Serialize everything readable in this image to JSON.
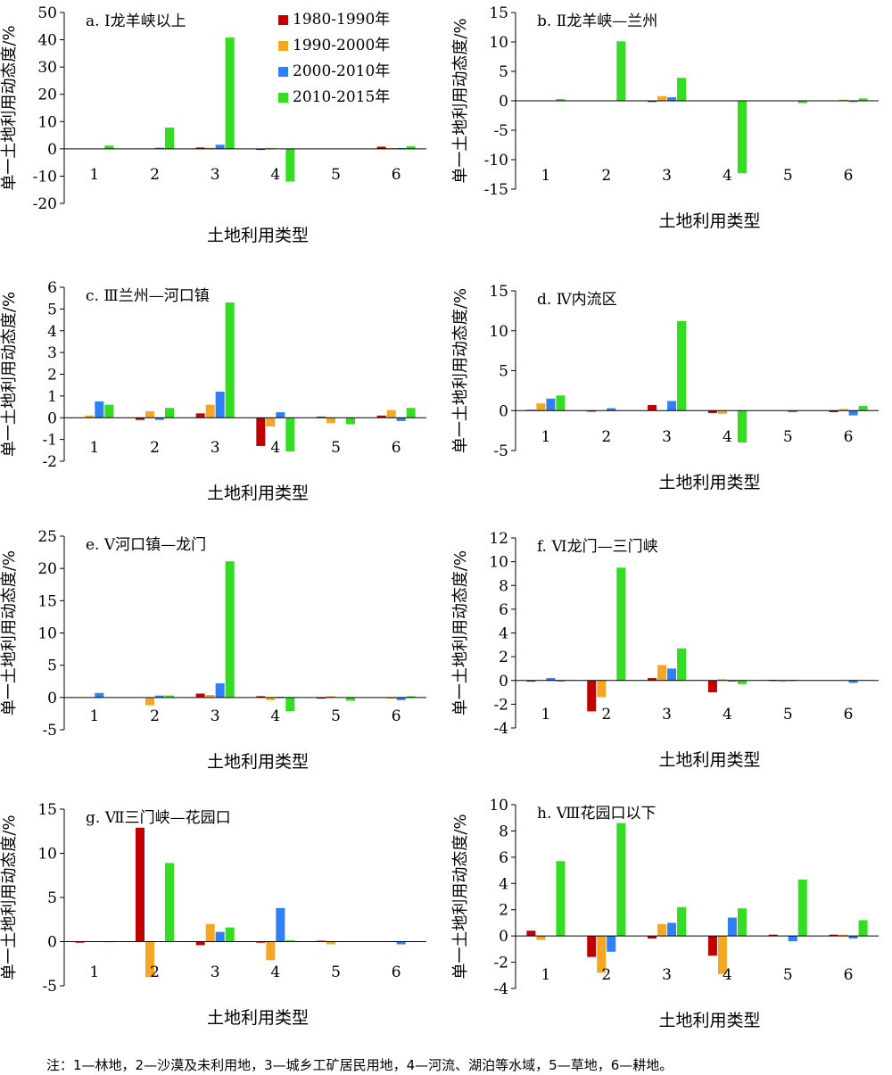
{
  "figure": {
    "note": "注：1—林地，2—沙漠及未利用地，3—城乡工矿居民用地，4—河流、湖泊等水域，5—草地，6—耕地。"
  },
  "colors": {
    "1980-1990年": "#c00000",
    "1990-2000年": "#f5a623",
    "2000-2010年": "#2f7ff5",
    "2010-2015年": "#33dd22"
  },
  "chart_data": [
    {
      "type": "bar",
      "title": "a. Ⅰ龙羊峡以上",
      "xlabel": "土地利用类型",
      "ylabel": "单一土地利用动态度/%",
      "categories": [
        "1",
        "2",
        "3",
        "4",
        "5",
        "6"
      ],
      "ylim": [
        -20,
        50
      ],
      "yticks": [
        -20,
        -10,
        0,
        10,
        20,
        30,
        40,
        50
      ],
      "legend": "top-center",
      "series": [
        {
          "name": "1980-1990年",
          "values": [
            0,
            0,
            0.5,
            -0.3,
            0,
            0.8
          ]
        },
        {
          "name": "1990-2000年",
          "values": [
            0,
            0,
            0.4,
            0.3,
            0,
            0.3
          ]
        },
        {
          "name": "2000-2010年",
          "values": [
            0,
            0.4,
            1.5,
            0,
            0,
            0.3
          ]
        },
        {
          "name": "2010-2015年",
          "values": [
            1.2,
            7.8,
            40.8,
            -12,
            0,
            1.0
          ]
        }
      ]
    },
    {
      "type": "bar",
      "title": "b. Ⅱ龙羊峡—兰州",
      "xlabel": "土地利用类型",
      "ylabel": "单一土地利用动态度/%",
      "categories": [
        "1",
        "2",
        "3",
        "4",
        "5",
        "6"
      ],
      "ylim": [
        -15,
        15
      ],
      "yticks": [
        -15,
        -10,
        -5,
        0,
        5,
        10,
        15
      ],
      "series": [
        {
          "name": "1980-1990年",
          "values": [
            0,
            0,
            -0.2,
            0,
            0,
            0
          ]
        },
        {
          "name": "1990-2000年",
          "values": [
            0,
            0,
            0.8,
            0,
            0,
            0.2
          ]
        },
        {
          "name": "2000-2010年",
          "values": [
            0,
            0,
            0.6,
            0,
            0,
            -0.2
          ]
        },
        {
          "name": "2010-2015年",
          "values": [
            0.3,
            10.1,
            3.9,
            -12.3,
            -0.4,
            0.4
          ]
        }
      ]
    },
    {
      "type": "bar",
      "title": "c. Ⅲ兰州—河口镇",
      "xlabel": "土地利用类型",
      "ylabel": "单一土地利用动态度/%",
      "categories": [
        "1",
        "2",
        "3",
        "4",
        "5",
        "6"
      ],
      "ylim": [
        -2,
        6
      ],
      "yticks": [
        -2,
        -1,
        0,
        1,
        2,
        3,
        4,
        5,
        6
      ],
      "series": [
        {
          "name": "1980-1990年",
          "values": [
            0,
            -0.1,
            0.2,
            -1.3,
            0.05,
            0.1
          ]
        },
        {
          "name": "1990-2000年",
          "values": [
            0.1,
            0.3,
            0.6,
            -0.4,
            -0.25,
            0.35
          ]
        },
        {
          "name": "2000-2010年",
          "values": [
            0.75,
            -0.1,
            1.2,
            0.25,
            0,
            -0.15
          ]
        },
        {
          "name": "2010-2015年",
          "values": [
            0.6,
            0.45,
            5.3,
            -1.55,
            -0.3,
            0.45
          ]
        }
      ]
    },
    {
      "type": "bar",
      "title": "d. Ⅳ内流区",
      "xlabel": "土地利用类型",
      "ylabel": "单一土地利用动态度/%",
      "categories": [
        "1",
        "2",
        "3",
        "4",
        "5",
        "6"
      ],
      "ylim": [
        -5,
        15
      ],
      "yticks": [
        -5,
        0,
        5,
        10,
        15
      ],
      "series": [
        {
          "name": "1980-1990年",
          "values": [
            0.1,
            -0.1,
            0.7,
            -0.3,
            0,
            -0.2
          ]
        },
        {
          "name": "1990-2000年",
          "values": [
            0.9,
            0,
            0,
            -0.4,
            0,
            0.2
          ]
        },
        {
          "name": "2000-2010年",
          "values": [
            1.5,
            0.3,
            1.2,
            0,
            -0.2,
            -0.6
          ]
        },
        {
          "name": "2010-2015年",
          "values": [
            1.9,
            0,
            11.2,
            -4,
            0,
            0.6
          ]
        }
      ]
    },
    {
      "type": "bar",
      "title": "e. Ⅴ河口镇—龙门",
      "xlabel": "土地利用类型",
      "ylabel": "单一土地利用动态度/%",
      "categories": [
        "1",
        "2",
        "3",
        "4",
        "5",
        "6"
      ],
      "ylim": [
        -5,
        25
      ],
      "yticks": [
        -5,
        0,
        5,
        10,
        15,
        20,
        25
      ],
      "series": [
        {
          "name": "1980-1990年",
          "values": [
            0,
            0,
            0.6,
            0.2,
            -0.1,
            0
          ]
        },
        {
          "name": "1990-2000年",
          "values": [
            0,
            -1.2,
            0.4,
            -0.4,
            0.2,
            -0.1
          ]
        },
        {
          "name": "2000-2010年",
          "values": [
            0.7,
            0.3,
            2.2,
            0.1,
            0,
            -0.4
          ]
        },
        {
          "name": "2010-2015年",
          "values": [
            0,
            0.3,
            21.1,
            -2.1,
            -0.5,
            0.2
          ]
        }
      ]
    },
    {
      "type": "bar",
      "title": "f. Ⅵ龙门—三门峡",
      "xlabel": "土地利用类型",
      "ylabel": "单一土地利用动态度/%",
      "categories": [
        "1",
        "2",
        "3",
        "4",
        "5",
        "6"
      ],
      "ylim": [
        -4,
        12
      ],
      "yticks": [
        -4,
        -2,
        0,
        2,
        4,
        6,
        8,
        10,
        12
      ],
      "series": [
        {
          "name": "1980-1990年",
          "values": [
            -0.1,
            -2.6,
            0.2,
            -1.0,
            0.05,
            0
          ]
        },
        {
          "name": "1990-2000年",
          "values": [
            0,
            -1.4,
            1.3,
            0.1,
            -0.1,
            0
          ]
        },
        {
          "name": "2000-2010年",
          "values": [
            0.2,
            0,
            1.0,
            -0.1,
            0.05,
            -0.2
          ]
        },
        {
          "name": "2010-2015年",
          "values": [
            -0.1,
            9.5,
            2.7,
            -0.3,
            0,
            0
          ]
        }
      ]
    },
    {
      "type": "bar",
      "title": "g. Ⅶ三门峡—花园口",
      "xlabel": "土地利用类型",
      "ylabel": "单一土地利用动态度/%",
      "categories": [
        "1",
        "2",
        "3",
        "4",
        "5",
        "6"
      ],
      "ylim": [
        -5,
        15
      ],
      "yticks": [
        -5,
        0,
        5,
        10,
        15
      ],
      "series": [
        {
          "name": "1980-1990年",
          "values": [
            -0.05,
            12.9,
            -0.4,
            -0.1,
            0.1,
            0
          ]
        },
        {
          "name": "1990-2000年",
          "values": [
            0,
            -4.0,
            2.0,
            -2.1,
            -0.3,
            0
          ]
        },
        {
          "name": "2000-2010年",
          "values": [
            0,
            0,
            1.1,
            3.8,
            0,
            -0.3
          ]
        },
        {
          "name": "2010-2015年",
          "values": [
            0.05,
            8.9,
            1.6,
            0.15,
            0,
            0
          ]
        }
      ]
    },
    {
      "type": "bar",
      "title": "h. Ⅷ花园口以下",
      "xlabel": "土地利用类型",
      "ylabel": "单一土地利用动态度/%",
      "categories": [
        "1",
        "2",
        "3",
        "4",
        "5",
        "6"
      ],
      "ylim": [
        -4,
        10
      ],
      "yticks": [
        -4,
        -2,
        0,
        2,
        4,
        6,
        8,
        10
      ],
      "series": [
        {
          "name": "1980-1990年",
          "values": [
            0.4,
            -1.6,
            -0.2,
            -1.5,
            0.1,
            0.1
          ]
        },
        {
          "name": "1990-2000年",
          "values": [
            -0.3,
            -2.8,
            0.9,
            -2.9,
            0,
            0.1
          ]
        },
        {
          "name": "2000-2010年",
          "values": [
            0,
            -1.2,
            1.0,
            1.4,
            -0.4,
            -0.2
          ]
        },
        {
          "name": "2010-2015年",
          "values": [
            5.7,
            8.6,
            2.2,
            2.1,
            4.3,
            1.2
          ]
        }
      ]
    }
  ]
}
